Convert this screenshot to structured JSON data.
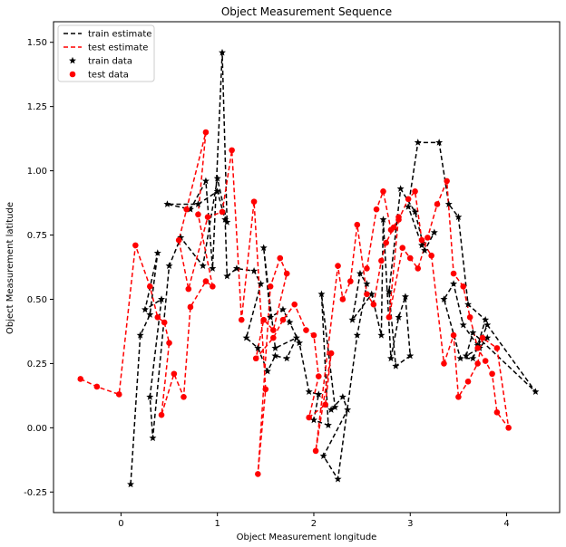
{
  "chart_data": {
    "type": "scatter",
    "title": "Object Measurement Sequence",
    "xlabel": "Object Measurement longitude",
    "ylabel": "Object Measurement latitude",
    "xlim": [
      -0.7,
      4.55
    ],
    "ylim": [
      -0.33,
      1.58
    ],
    "xticks": [
      0,
      1,
      2,
      3,
      4
    ],
    "yticks": [
      -0.25,
      0.0,
      0.25,
      0.5,
      0.75,
      1.0,
      1.25,
      1.5
    ],
    "legend_position": "upper left",
    "grid": false,
    "series": [
      {
        "name": "train estimate",
        "kind": "line",
        "color": "#000000",
        "dash": "5,3",
        "x": [
          0.1,
          0.2,
          0.3,
          0.38,
          0.25,
          0.42,
          0.3,
          0.33,
          0.5,
          0.62,
          0.85,
          1.0,
          1.1,
          1.05,
          0.95,
          0.88,
          0.72,
          0.48,
          0.8,
          1.0,
          1.08,
          1.1,
          1.2,
          1.38,
          1.45,
          1.3,
          1.42,
          1.52,
          1.6,
          1.72,
          1.82,
          1.6,
          1.48,
          1.55,
          1.68,
          1.75,
          1.85,
          1.95,
          2.05,
          2.0,
          2.15,
          2.08,
          2.22,
          2.18,
          2.3,
          2.35,
          2.1,
          2.25,
          2.45,
          2.55,
          2.48,
          2.4,
          2.6,
          2.7,
          2.72,
          2.8,
          2.88,
          2.95,
          3.0,
          2.85,
          2.78,
          2.9,
          3.05,
          3.15,
          3.25,
          3.12,
          2.98,
          3.08,
          3.3,
          3.4,
          3.5,
          3.6,
          3.78,
          3.7,
          3.55,
          3.45,
          3.35,
          3.52,
          3.65,
          3.8,
          4.3,
          3.65,
          3.58,
          3.72,
          3.8
        ],
        "y": [
          -0.22,
          0.36,
          0.44,
          0.68,
          0.46,
          0.5,
          0.12,
          -0.04,
          0.63,
          0.74,
          0.63,
          0.97,
          0.8,
          1.46,
          0.62,
          0.96,
          0.85,
          0.87,
          0.87,
          0.92,
          0.81,
          0.59,
          0.62,
          0.61,
          0.56,
          0.35,
          0.31,
          0.22,
          0.28,
          0.27,
          0.35,
          0.31,
          0.7,
          0.43,
          0.46,
          0.41,
          0.33,
          0.14,
          0.13,
          0.03,
          0.01,
          0.52,
          0.08,
          0.07,
          0.12,
          0.07,
          -0.11,
          -0.2,
          0.36,
          0.56,
          0.6,
          0.42,
          0.52,
          0.36,
          0.81,
          0.27,
          0.43,
          0.51,
          0.28,
          0.24,
          0.53,
          0.93,
          0.84,
          0.69,
          0.76,
          0.71,
          0.86,
          1.11,
          1.11,
          0.87,
          0.82,
          0.48,
          0.42,
          0.32,
          0.4,
          0.56,
          0.5,
          0.27,
          0.27,
          0.4,
          0.14,
          0.37,
          0.28,
          0.31,
          0.35
        ]
      },
      {
        "name": "test estimate",
        "kind": "line",
        "color": "#ff0000",
        "dash": "5,3",
        "x": [
          -0.42,
          -0.25,
          -0.02,
          0.15,
          0.3,
          0.38,
          0.45,
          0.5,
          0.42,
          0.55,
          0.65,
          0.72,
          0.88,
          0.95,
          0.8,
          0.88,
          0.68,
          0.6,
          0.7,
          0.9,
          1.05,
          1.15,
          1.25,
          1.38,
          1.5,
          1.42,
          1.55,
          1.65,
          1.72,
          1.58,
          1.48,
          1.4,
          1.58,
          1.68,
          1.8,
          1.92,
          2.0,
          2.05,
          1.95,
          2.12,
          2.18,
          2.02,
          2.25,
          2.3,
          2.38,
          2.45,
          2.55,
          2.62,
          2.7,
          2.75,
          2.83,
          2.88,
          2.78,
          2.92,
          3.0,
          3.08,
          3.18,
          3.28,
          3.38,
          3.45,
          3.55,
          3.62,
          3.7,
          3.78,
          3.85,
          3.9,
          4.02,
          3.9,
          3.75,
          3.7,
          3.6,
          3.5,
          3.45,
          3.35,
          3.22,
          3.12,
          3.05,
          2.98,
          2.88,
          2.8,
          2.72,
          2.65,
          2.55
        ],
        "y": [
          0.19,
          0.16,
          0.13,
          0.71,
          0.55,
          0.43,
          0.41,
          0.33,
          0.05,
          0.21,
          0.12,
          0.47,
          0.57,
          0.55,
          0.83,
          1.15,
          0.85,
          0.73,
          0.54,
          0.82,
          0.84,
          1.08,
          0.42,
          0.88,
          0.15,
          -0.18,
          0.55,
          0.66,
          0.6,
          0.38,
          0.42,
          0.27,
          0.35,
          0.42,
          0.48,
          0.38,
          0.36,
          0.2,
          0.04,
          0.09,
          0.29,
          -0.09,
          0.63,
          0.5,
          0.57,
          0.79,
          0.52,
          0.48,
          0.65,
          0.72,
          0.78,
          0.82,
          0.43,
          0.7,
          0.66,
          0.62,
          0.74,
          0.87,
          0.96,
          0.6,
          0.55,
          0.43,
          0.31,
          0.26,
          0.21,
          0.06,
          0.0,
          0.31,
          0.35,
          0.25,
          0.18,
          0.12,
          0.36,
          0.25,
          0.67,
          0.73,
          0.92,
          0.89,
          0.81,
          0.77,
          0.92,
          0.85,
          0.62
        ]
      },
      {
        "name": "train data",
        "kind": "marker",
        "marker": "star",
        "color": "#000000",
        "x": [
          0.1,
          0.2,
          0.3,
          0.38,
          0.25,
          0.42,
          0.3,
          0.33,
          0.5,
          0.62,
          0.85,
          1.0,
          1.1,
          1.05,
          0.95,
          0.88,
          0.72,
          0.48,
          0.8,
          1.0,
          1.08,
          1.1,
          1.2,
          1.38,
          1.45,
          1.3,
          1.42,
          1.52,
          1.6,
          1.72,
          1.82,
          1.6,
          1.48,
          1.55,
          1.68,
          1.75,
          1.85,
          1.95,
          2.05,
          2.0,
          2.15,
          2.08,
          2.22,
          2.18,
          2.3,
          2.35,
          2.1,
          2.25,
          2.45,
          2.55,
          2.48,
          2.4,
          2.6,
          2.7,
          2.72,
          2.8,
          2.88,
          2.95,
          3.0,
          2.85,
          2.78,
          2.9,
          3.05,
          3.15,
          3.25,
          3.12,
          2.98,
          3.08,
          3.3,
          3.4,
          3.5,
          3.6,
          3.78,
          3.7,
          3.55,
          3.45,
          3.35,
          3.52,
          3.65,
          3.8,
          4.3,
          3.65,
          3.58,
          3.72,
          3.8
        ],
        "y": [
          -0.22,
          0.36,
          0.44,
          0.68,
          0.46,
          0.5,
          0.12,
          -0.04,
          0.63,
          0.74,
          0.63,
          0.97,
          0.8,
          1.46,
          0.62,
          0.96,
          0.85,
          0.87,
          0.87,
          0.92,
          0.81,
          0.59,
          0.62,
          0.61,
          0.56,
          0.35,
          0.31,
          0.22,
          0.28,
          0.27,
          0.35,
          0.31,
          0.7,
          0.43,
          0.46,
          0.41,
          0.33,
          0.14,
          0.13,
          0.03,
          0.01,
          0.52,
          0.08,
          0.07,
          0.12,
          0.07,
          -0.11,
          -0.2,
          0.36,
          0.56,
          0.6,
          0.42,
          0.52,
          0.36,
          0.81,
          0.27,
          0.43,
          0.51,
          0.28,
          0.24,
          0.53,
          0.93,
          0.84,
          0.69,
          0.76,
          0.71,
          0.86,
          1.11,
          1.11,
          0.87,
          0.82,
          0.48,
          0.42,
          0.32,
          0.4,
          0.56,
          0.5,
          0.27,
          0.27,
          0.4,
          0.14,
          0.37,
          0.28,
          0.31,
          0.35
        ]
      },
      {
        "name": "test data",
        "kind": "marker",
        "marker": "circle",
        "color": "#ff0000",
        "x": [
          -0.42,
          -0.25,
          -0.02,
          0.15,
          0.3,
          0.38,
          0.45,
          0.5,
          0.42,
          0.55,
          0.65,
          0.72,
          0.88,
          0.95,
          0.8,
          0.88,
          0.68,
          0.6,
          0.7,
          0.9,
          1.05,
          1.15,
          1.25,
          1.38,
          1.5,
          1.42,
          1.55,
          1.65,
          1.72,
          1.58,
          1.48,
          1.4,
          1.58,
          1.68,
          1.8,
          1.92,
          2.0,
          2.05,
          1.95,
          2.12,
          2.18,
          2.02,
          2.25,
          2.3,
          2.38,
          2.45,
          2.55,
          2.62,
          2.7,
          2.75,
          2.83,
          2.88,
          2.78,
          2.92,
          3.0,
          3.08,
          3.18,
          3.28,
          3.38,
          3.45,
          3.55,
          3.62,
          3.7,
          3.78,
          3.85,
          3.9,
          4.02,
          3.9,
          3.75,
          3.7,
          3.6,
          3.5,
          3.45,
          3.35,
          3.22,
          3.12,
          3.05,
          2.98,
          2.88,
          2.8,
          2.72,
          2.65,
          2.55
        ],
        "y": [
          0.19,
          0.16,
          0.13,
          0.71,
          0.55,
          0.43,
          0.41,
          0.33,
          0.05,
          0.21,
          0.12,
          0.47,
          0.57,
          0.55,
          0.83,
          1.15,
          0.85,
          0.73,
          0.54,
          0.82,
          0.84,
          1.08,
          0.42,
          0.88,
          0.15,
          -0.18,
          0.55,
          0.66,
          0.6,
          0.38,
          0.42,
          0.27,
          0.35,
          0.42,
          0.48,
          0.38,
          0.36,
          0.2,
          0.04,
          0.09,
          0.29,
          -0.09,
          0.63,
          0.5,
          0.57,
          0.79,
          0.52,
          0.48,
          0.65,
          0.72,
          0.78,
          0.82,
          0.43,
          0.7,
          0.66,
          0.62,
          0.74,
          0.87,
          0.96,
          0.6,
          0.55,
          0.43,
          0.31,
          0.26,
          0.21,
          0.06,
          0.0,
          0.31,
          0.35,
          0.25,
          0.18,
          0.12,
          0.36,
          0.25,
          0.67,
          0.73,
          0.92,
          0.89,
          0.81,
          0.77,
          0.92,
          0.85,
          0.62
        ]
      }
    ]
  }
}
